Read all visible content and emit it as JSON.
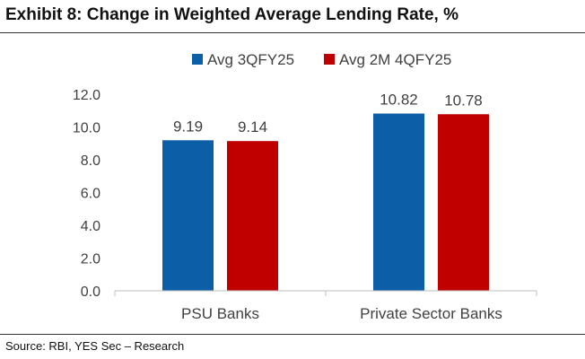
{
  "title": "Exhibit 8: Change in Weighted Average Lending Rate, %",
  "source": "Source: RBI, YES Sec – Research",
  "chart_data": {
    "type": "bar",
    "title": "Exhibit 8: Change in Weighted Average Lending Rate, %",
    "xlabel": "",
    "ylabel": "",
    "categories": [
      "PSU Banks",
      "Private Sector Banks"
    ],
    "series": [
      {
        "name": "Avg 3QFY25",
        "values": [
          9.19,
          10.82
        ],
        "labels": [
          "9.19",
          "10.82"
        ],
        "color": "#0c5fa6"
      },
      {
        "name": "Avg 2M 4QFY25",
        "values": [
          9.14,
          10.78
        ],
        "labels": [
          "9.14",
          "10.78"
        ],
        "color": "#c00000"
      }
    ],
    "ylim": [
      0,
      12
    ],
    "yticks": [
      "0.0",
      "2.0",
      "4.0",
      "6.0",
      "8.0",
      "10.0",
      "12.0"
    ],
    "legend": "top-center",
    "grid": false
  }
}
